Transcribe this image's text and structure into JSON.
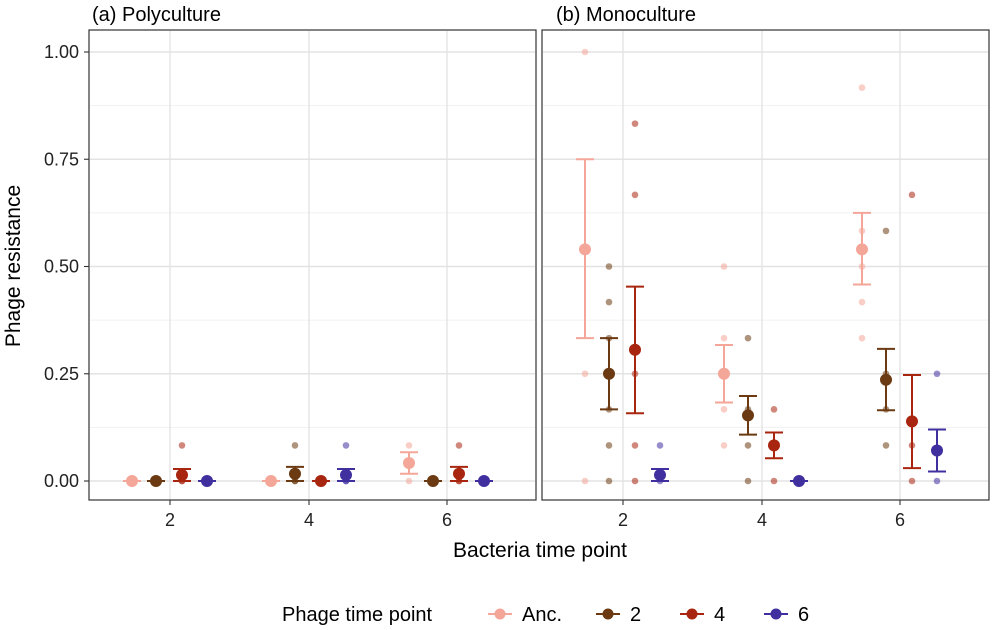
{
  "chart_data": {
    "type": "scatter",
    "ylabel": "Phage resistance",
    "xlabel": "Bacteria time point",
    "ylim": [
      0,
      1.05
    ],
    "yticks": [
      "0.00",
      "0.25",
      "0.50",
      "0.75",
      "1.00"
    ],
    "ytick_values": [
      0,
      0.25,
      0.5,
      0.75,
      1.0
    ],
    "categories": [
      "2",
      "4",
      "6"
    ],
    "grid": true,
    "legend": {
      "title": "Phage time point",
      "position": "bottom",
      "entries": [
        {
          "label": "Anc.",
          "color": "#F4A699"
        },
        {
          "label": "2",
          "color": "#6B3A12"
        },
        {
          "label": "4",
          "color": "#A8260F"
        },
        {
          "label": "6",
          "color": "#3F2F9F"
        }
      ]
    },
    "panels": [
      {
        "title": "(a) Polyculture",
        "groups": [
          {
            "bacteria": "2",
            "phage": "Anc.",
            "mean": 0.0,
            "ci": [
              0.0,
              0.0
            ],
            "points": [
              0,
              0,
              0
            ]
          },
          {
            "bacteria": "2",
            "phage": "2",
            "mean": 0.0,
            "ci": [
              0.0,
              0.0
            ],
            "points": [
              0,
              0,
              0
            ]
          },
          {
            "bacteria": "2",
            "phage": "4",
            "mean": 0.014,
            "ci": [
              0.0,
              0.028
            ],
            "points": [
              0.083,
              0,
              0
            ]
          },
          {
            "bacteria": "2",
            "phage": "6",
            "mean": 0.0,
            "ci": [
              0.0,
              0.0
            ],
            "points": [
              0,
              0,
              0
            ]
          },
          {
            "bacteria": "4",
            "phage": "Anc.",
            "mean": 0.0,
            "ci": [
              0.0,
              0.0
            ],
            "points": [
              0,
              0,
              0
            ]
          },
          {
            "bacteria": "4",
            "phage": "2",
            "mean": 0.017,
            "ci": [
              0.0,
              0.033
            ],
            "points": [
              0.083,
              0,
              0
            ]
          },
          {
            "bacteria": "4",
            "phage": "4",
            "mean": 0.0,
            "ci": [
              0.0,
              0.0
            ],
            "points": [
              0,
              0,
              0
            ]
          },
          {
            "bacteria": "4",
            "phage": "6",
            "mean": 0.014,
            "ci": [
              0.0,
              0.028
            ],
            "points": [
              0.083,
              0,
              0
            ]
          },
          {
            "bacteria": "6",
            "phage": "Anc.",
            "mean": 0.042,
            "ci": [
              0.017,
              0.067
            ],
            "points": [
              0.083,
              0.042,
              0
            ]
          },
          {
            "bacteria": "6",
            "phage": "2",
            "mean": 0.0,
            "ci": [
              0.0,
              0.0
            ],
            "points": [
              0,
              0,
              0
            ]
          },
          {
            "bacteria": "6",
            "phage": "4",
            "mean": 0.017,
            "ci": [
              0.0,
              0.033
            ],
            "points": [
              0.083,
              0,
              0
            ]
          },
          {
            "bacteria": "6",
            "phage": "6",
            "mean": 0.0,
            "ci": [
              0.0,
              0.0
            ],
            "points": [
              0,
              0,
              0
            ]
          }
        ]
      },
      {
        "title": "(b) Monoculture",
        "groups": [
          {
            "bacteria": "2",
            "phage": "Anc.",
            "mean": 0.54,
            "ci": [
              0.333,
              0.75
            ],
            "points": [
              1.0,
              0.25,
              0.0
            ]
          },
          {
            "bacteria": "2",
            "phage": "2",
            "mean": 0.25,
            "ci": [
              0.167,
              0.333
            ],
            "points": [
              0.5,
              0.417,
              0.333,
              0.167,
              0.083,
              0.0
            ]
          },
          {
            "bacteria": "2",
            "phage": "4",
            "mean": 0.306,
            "ci": [
              0.158,
              0.453
            ],
            "points": [
              0.833,
              0.667,
              0.25,
              0.083,
              0.0
            ]
          },
          {
            "bacteria": "2",
            "phage": "6",
            "mean": 0.014,
            "ci": [
              0.0,
              0.028
            ],
            "points": [
              0.083,
              0.0
            ]
          },
          {
            "bacteria": "4",
            "phage": "Anc.",
            "mean": 0.25,
            "ci": [
              0.183,
              0.317
            ],
            "points": [
              0.5,
              0.333,
              0.167,
              0.083
            ]
          },
          {
            "bacteria": "4",
            "phage": "2",
            "mean": 0.153,
            "ci": [
              0.108,
              0.198
            ],
            "points": [
              0.333,
              0.167,
              0.083,
              0.0
            ]
          },
          {
            "bacteria": "4",
            "phage": "4",
            "mean": 0.083,
            "ci": [
              0.053,
              0.113
            ],
            "points": [
              0.167,
              0.083,
              0.0
            ]
          },
          {
            "bacteria": "4",
            "phage": "6",
            "mean": 0.0,
            "ci": [
              0.0,
              0.0
            ],
            "points": [
              0.0
            ]
          },
          {
            "bacteria": "6",
            "phage": "Anc.",
            "mean": 0.54,
            "ci": [
              0.458,
              0.625
            ],
            "points": [
              0.917,
              0.583,
              0.5,
              0.417,
              0.333
            ]
          },
          {
            "bacteria": "6",
            "phage": "2",
            "mean": 0.236,
            "ci": [
              0.165,
              0.308
            ],
            "points": [
              0.583,
              0.25,
              0.167,
              0.083
            ]
          },
          {
            "bacteria": "6",
            "phage": "4",
            "mean": 0.139,
            "ci": [
              0.03,
              0.247
            ],
            "points": [
              0.667,
              0.083,
              0.0
            ]
          },
          {
            "bacteria": "6",
            "phage": "6",
            "mean": 0.071,
            "ci": [
              0.022,
              0.12
            ],
            "points": [
              0.25,
              0.0
            ]
          }
        ]
      }
    ]
  }
}
